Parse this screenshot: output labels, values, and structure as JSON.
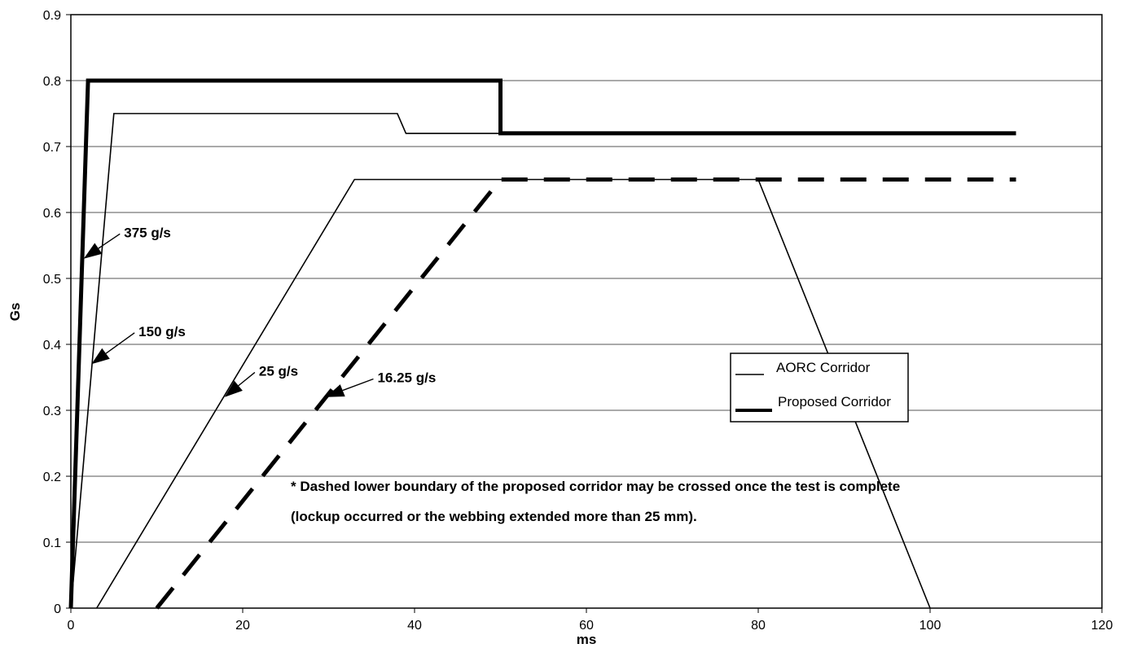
{
  "chart_data": {
    "type": "line",
    "title": "",
    "xlabel": "ms",
    "ylabel": "Gs",
    "xlim": [
      0,
      120
    ],
    "ylim": [
      0,
      0.9
    ],
    "xticks": [
      "0",
      "20",
      "40",
      "60",
      "80",
      "100",
      "120"
    ],
    "yticks": [
      "0",
      "0.1",
      "0.2",
      "0.3",
      "0.4",
      "0.5",
      "0.6",
      "0.7",
      "0.8",
      "0.9"
    ],
    "grid": "horizontal",
    "legend": {
      "position": "right",
      "entries": [
        {
          "label": "AORC Corridor",
          "style": "thin"
        },
        {
          "label": "Proposed Corridor",
          "style": "thick"
        }
      ]
    },
    "series": [
      {
        "name": "AORC Corridor",
        "style": "thin",
        "segments": [
          {
            "x": [
              0,
              5,
              38,
              39,
              50
            ],
            "y": [
              0,
              0.75,
              0.75,
              0.72,
              0.72
            ]
          },
          {
            "x": [
              3,
              33,
              80,
              100
            ],
            "y": [
              0,
              0.65,
              0.65,
              0
            ]
          }
        ]
      },
      {
        "name": "Proposed Corridor",
        "style": "thick",
        "segments": [
          {
            "x": [
              0,
              2,
              50,
              50,
              110
            ],
            "y": [
              0,
              0.8,
              0.8,
              0.72,
              0.72
            ],
            "dashed": false
          },
          {
            "x": [
              10,
              50,
              110
            ],
            "y": [
              0,
              0.65,
              0.65
            ],
            "dashed": true
          }
        ]
      }
    ],
    "annotations": [
      {
        "text": "375 g/s",
        "label_x": 5.9,
        "label_y": 0.57,
        "arrow_x": 1.5,
        "arrow_y": 0.53
      },
      {
        "text": "150 g/s",
        "label_x": 7.6,
        "label_y": 0.42,
        "arrow_x": 2.4,
        "arrow_y": 0.37
      },
      {
        "text": "25 g/s",
        "label_x": 21.6,
        "label_y": 0.36,
        "arrow_x": 17.9,
        "arrow_y": 0.32
      },
      {
        "text": "16.25 g/s",
        "label_x": 35.4,
        "label_y": 0.35,
        "arrow_x": 29.7,
        "arrow_y": 0.32
      }
    ],
    "note": {
      "lines": [
        "* Dashed lower boundary of the proposed corridor may be crossed once the test is complete",
        "(lockup occurred or the webbing extended more than 25 mm)."
      ]
    }
  },
  "colors": {
    "line": "#000000",
    "grid": "#555555",
    "background": "#ffffff"
  }
}
